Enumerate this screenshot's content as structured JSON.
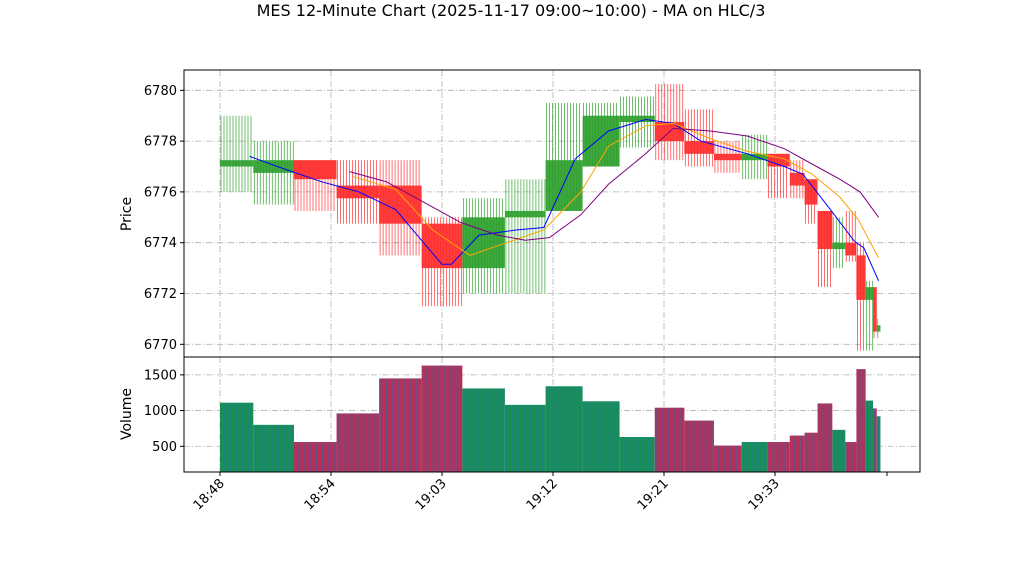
{
  "chart_data": {
    "type": "candlestick",
    "title": "MES 12-Minute Chart (2025-11-17 09:00~10:00) - MA on HLC/3",
    "price_ylabel": "Price",
    "volume_ylabel": "Volume",
    "price_ylim": [
      6769.5,
      6780.8
    ],
    "price_yticks": [
      6770,
      6772,
      6774,
      6776,
      6778,
      6780
    ],
    "volume_ylim": [
      140,
      1750
    ],
    "volume_yticks": [
      500,
      1000,
      1500
    ],
    "x_tick_labels": [
      {
        "label": "18:48",
        "bar": 0
      },
      {
        "label": "18:54",
        "bar": 6
      },
      {
        "label": "19:03",
        "bar": 12
      },
      {
        "label": "19:12",
        "bar": 18
      },
      {
        "label": "19:21",
        "bar": 24
      },
      {
        "label": "19:33",
        "bar": 30
      }
    ],
    "colors": {
      "up": "#2ca02c",
      "down": "#ff2b2b",
      "ma_fast": "#0000ff",
      "ma_mid": "#ffa500",
      "ma_slow": "#800080",
      "volume_bar": "#1f77b4"
    },
    "candles": [
      {
        "start": 0.0,
        "end": 1.8,
        "open": 6777.0,
        "high": 6779.0,
        "low": 6776.0,
        "close": 6777.25,
        "volume": 1110
      },
      {
        "start": 1.8,
        "end": 4.0,
        "open": 6776.75,
        "high": 6778.0,
        "low": 6775.5,
        "close": 6777.25,
        "volume": 800
      },
      {
        "start": 4.0,
        "end": 6.3,
        "open": 6777.25,
        "high": 6777.25,
        "low": 6775.25,
        "close": 6776.5,
        "volume": 560
      },
      {
        "start": 6.3,
        "end": 8.6,
        "open": 6776.25,
        "high": 6777.25,
        "low": 6774.75,
        "close": 6775.75,
        "volume": 960
      },
      {
        "start": 8.6,
        "end": 10.9,
        "open": 6776.25,
        "high": 6777.25,
        "low": 6773.5,
        "close": 6774.75,
        "volume": 1450
      },
      {
        "start": 10.9,
        "end": 13.1,
        "open": 6774.75,
        "high": 6775.0,
        "low": 6771.5,
        "close": 6773.0,
        "volume": 1630
      },
      {
        "start": 13.1,
        "end": 15.4,
        "open": 6773.0,
        "high": 6775.75,
        "low": 6772.0,
        "close": 6775.0,
        "volume": 1310
      },
      {
        "start": 15.4,
        "end": 17.6,
        "open": 6775.0,
        "high": 6776.5,
        "low": 6772.0,
        "close": 6775.25,
        "volume": 1080
      },
      {
        "start": 17.6,
        "end": 19.6,
        "open": 6775.25,
        "high": 6779.5,
        "low": 6775.25,
        "close": 6777.25,
        "volume": 1340
      },
      {
        "start": 19.6,
        "end": 21.6,
        "open": 6777.0,
        "high": 6779.5,
        "low": 6777.0,
        "close": 6779.0,
        "volume": 1130
      },
      {
        "start": 21.6,
        "end": 23.5,
        "open": 6778.75,
        "high": 6779.75,
        "low": 6777.75,
        "close": 6779.0,
        "volume": 630
      },
      {
        "start": 23.5,
        "end": 25.1,
        "open": 6778.75,
        "high": 6780.25,
        "low": 6777.25,
        "close": 6778.0,
        "volume": 1040
      },
      {
        "start": 25.1,
        "end": 26.7,
        "open": 6778.0,
        "high": 6779.25,
        "low": 6777.0,
        "close": 6777.5,
        "volume": 860
      },
      {
        "start": 26.7,
        "end": 28.2,
        "open": 6777.5,
        "high": 6778.0,
        "low": 6776.75,
        "close": 6777.25,
        "volume": 510
      },
      {
        "start": 28.2,
        "end": 29.6,
        "open": 6777.25,
        "high": 6778.25,
        "low": 6776.5,
        "close": 6777.5,
        "volume": 560
      },
      {
        "start": 29.6,
        "end": 30.8,
        "open": 6777.5,
        "high": 6777.5,
        "low": 6775.75,
        "close": 6777.0,
        "volume": 560
      },
      {
        "start": 30.8,
        "end": 31.6,
        "open": 6776.75,
        "high": 6777.25,
        "low": 6775.75,
        "close": 6776.25,
        "volume": 650
      },
      {
        "start": 31.6,
        "end": 32.3,
        "open": 6776.5,
        "high": 6776.5,
        "low": 6774.75,
        "close": 6775.5,
        "volume": 690
      },
      {
        "start": 32.3,
        "end": 33.1,
        "open": 6775.25,
        "high": 6775.25,
        "low": 6772.25,
        "close": 6773.75,
        "volume": 1100
      },
      {
        "start": 33.1,
        "end": 33.8,
        "open": 6773.75,
        "high": 6775.0,
        "low": 6773.0,
        "close": 6774.0,
        "volume": 730
      },
      {
        "start": 33.8,
        "end": 34.4,
        "open": 6774.0,
        "high": 6775.25,
        "low": 6773.25,
        "close": 6773.5,
        "volume": 560
      },
      {
        "start": 34.4,
        "end": 34.9,
        "open": 6773.5,
        "high": 6774.0,
        "low": 6769.75,
        "close": 6771.75,
        "volume": 1580
      },
      {
        "start": 34.9,
        "end": 35.3,
        "open": 6771.75,
        "high": 6772.5,
        "low": 6769.75,
        "close": 6772.25,
        "volume": 1140
      },
      {
        "start": 35.3,
        "end": 35.5,
        "open": 6772.25,
        "high": 6772.25,
        "low": 6770.25,
        "close": 6770.5,
        "volume": 1030
      },
      {
        "start": 35.5,
        "end": 35.7,
        "open": 6770.5,
        "high": 6771.0,
        "low": 6770.25,
        "close": 6770.75,
        "volume": 920
      }
    ],
    "ma_lines": [
      {
        "color": "#0000ff",
        "points": [
          [
            1.6,
            6777.4
          ],
          [
            3.5,
            6776.9
          ],
          [
            5.5,
            6776.4
          ],
          [
            7.5,
            6776.0
          ],
          [
            9.5,
            6775.3
          ],
          [
            11.0,
            6774.0
          ],
          [
            12.0,
            6773.15
          ],
          [
            12.5,
            6773.15
          ],
          [
            14.0,
            6774.3
          ],
          [
            16.0,
            6774.5
          ],
          [
            17.5,
            6774.6
          ],
          [
            19.2,
            6777.3
          ],
          [
            21.0,
            6778.4
          ],
          [
            23.0,
            6778.85
          ],
          [
            24.5,
            6778.7
          ],
          [
            26.0,
            6778.0
          ],
          [
            28.5,
            6777.5
          ],
          [
            30.5,
            6777.0
          ],
          [
            31.5,
            6776.7
          ],
          [
            33.0,
            6775.3
          ],
          [
            34.3,
            6774.05
          ],
          [
            34.8,
            6773.8
          ],
          [
            35.6,
            6772.5
          ]
        ]
      },
      {
        "color": "#ffa500",
        "points": [
          [
            7.2,
            6776.6
          ],
          [
            9.5,
            6776.1
          ],
          [
            11.5,
            6774.5
          ],
          [
            13.5,
            6773.5
          ],
          [
            15.5,
            6774.0
          ],
          [
            17.5,
            6774.5
          ],
          [
            19.5,
            6776.0
          ],
          [
            21.0,
            6777.8
          ],
          [
            23.0,
            6778.6
          ],
          [
            24.5,
            6778.7
          ],
          [
            26.5,
            6778.1
          ],
          [
            28.5,
            6777.6
          ],
          [
            30.5,
            6777.3
          ],
          [
            32.0,
            6776.7
          ],
          [
            33.5,
            6775.8
          ],
          [
            34.5,
            6774.9
          ],
          [
            35.6,
            6773.4
          ]
        ]
      },
      {
        "color": "#800080",
        "points": [
          [
            7.0,
            6776.8
          ],
          [
            9.0,
            6776.4
          ],
          [
            11.0,
            6775.6
          ],
          [
            13.0,
            6774.8
          ],
          [
            15.0,
            6774.3
          ],
          [
            16.5,
            6774.1
          ],
          [
            17.8,
            6774.2
          ],
          [
            19.5,
            6775.1
          ],
          [
            21.0,
            6776.3
          ],
          [
            23.0,
            6777.5
          ],
          [
            24.5,
            6778.5
          ],
          [
            26.5,
            6778.4
          ],
          [
            28.5,
            6778.2
          ],
          [
            30.5,
            6777.7
          ],
          [
            32.0,
            6777.1
          ],
          [
            33.5,
            6776.5
          ],
          [
            34.6,
            6776.0
          ],
          [
            35.6,
            6775.0
          ]
        ]
      }
    ]
  }
}
